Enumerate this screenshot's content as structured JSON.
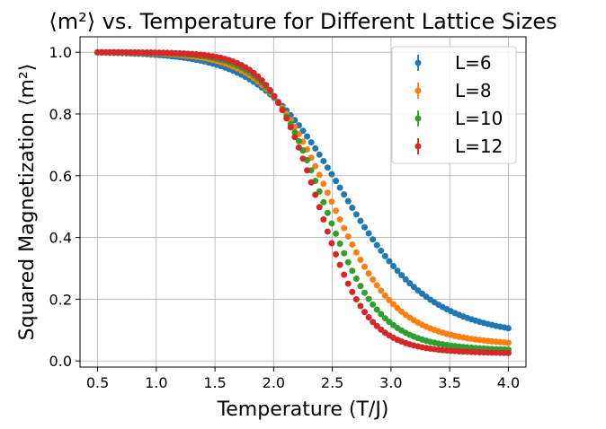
{
  "chart_data": {
    "type": "scatter",
    "title": "⟨m²⟩ vs. Temperature for Different Lattice Sizes",
    "xlabel": "Temperature (T/J)",
    "ylabel": "Squared Magnetization ⟨m²⟩",
    "xlim": [
      0.35,
      4.15
    ],
    "ylim": [
      -0.02,
      1.05
    ],
    "xticks": [
      0.5,
      1.0,
      1.5,
      2.0,
      2.5,
      3.0,
      3.5,
      4.0
    ],
    "xtick_labels": [
      "0.5",
      "1.0",
      "1.5",
      "2.0",
      "2.5",
      "3.0",
      "3.5",
      "4.0"
    ],
    "yticks": [
      0.0,
      0.2,
      0.4,
      0.6,
      0.8,
      1.0
    ],
    "ytick_labels": [
      "0.0",
      "0.2",
      "0.4",
      "0.6",
      "0.8",
      "1.0"
    ],
    "grid": true,
    "legend_position": "upper right",
    "x": {
      "start": 0.5,
      "stop": 4.0,
      "count": 101
    },
    "series": [
      {
        "name": "L=6",
        "color": "#1f77b4",
        "Tc": 2.55,
        "width": 0.36,
        "floor": 0.09,
        "key_points": [
          [
            0.5,
            1.0
          ],
          [
            1.5,
            0.98
          ],
          [
            2.0,
            0.84
          ],
          [
            2.5,
            0.56
          ],
          [
            3.0,
            0.29
          ],
          [
            3.5,
            0.16
          ],
          [
            4.0,
            0.12
          ]
        ]
      },
      {
        "name": "L=8",
        "color": "#ff7f0e",
        "Tc": 2.46,
        "width": 0.28,
        "floor": 0.055,
        "key_points": [
          [
            0.5,
            1.0
          ],
          [
            1.5,
            0.98
          ],
          [
            2.0,
            0.83
          ],
          [
            2.5,
            0.45
          ],
          [
            3.0,
            0.18
          ],
          [
            3.5,
            0.1
          ],
          [
            4.0,
            0.07
          ]
        ]
      },
      {
        "name": "L=10",
        "color": "#2ca02c",
        "Tc": 2.41,
        "width": 0.24,
        "floor": 0.035,
        "key_points": [
          [
            0.5,
            1.0
          ],
          [
            1.5,
            0.98
          ],
          [
            2.0,
            0.83
          ],
          [
            2.5,
            0.38
          ],
          [
            3.0,
            0.12
          ],
          [
            3.5,
            0.06
          ],
          [
            4.0,
            0.04
          ]
        ]
      },
      {
        "name": "L=12",
        "color": "#d62728",
        "Tc": 2.37,
        "width": 0.21,
        "floor": 0.025,
        "key_points": [
          [
            0.5,
            1.0
          ],
          [
            1.5,
            0.98
          ],
          [
            2.0,
            0.82
          ],
          [
            2.5,
            0.3
          ],
          [
            3.0,
            0.08
          ],
          [
            3.5,
            0.04
          ],
          [
            4.0,
            0.03
          ]
        ]
      }
    ]
  }
}
